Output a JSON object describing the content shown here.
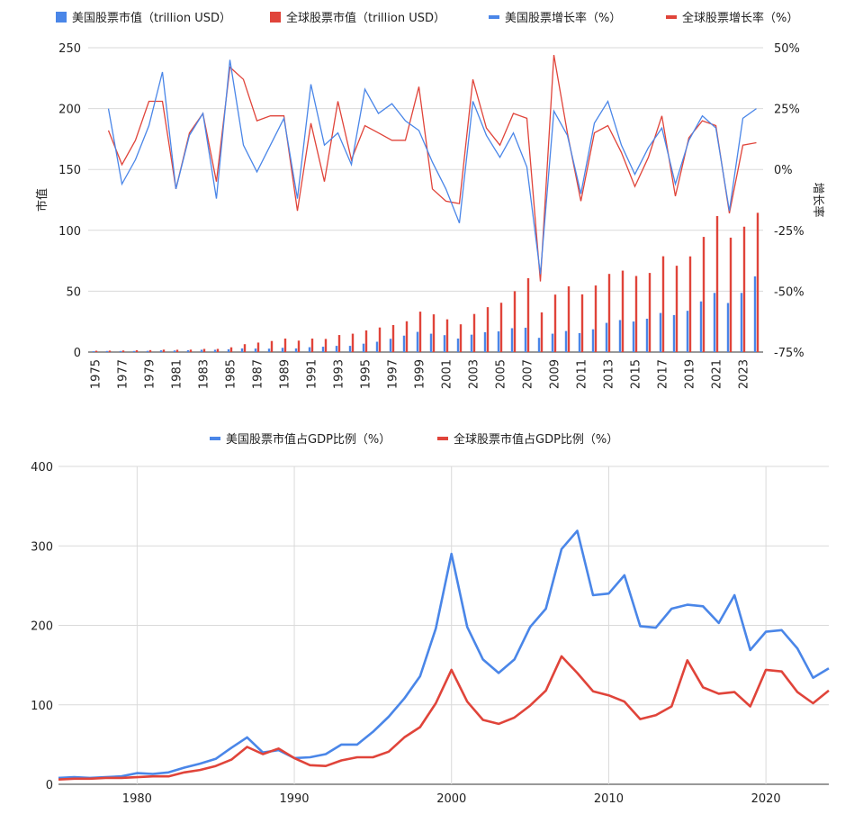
{
  "colors": {
    "us": "#4A86E8",
    "global": "#E0443A",
    "grid": "#DADADA",
    "axis": "#333333"
  },
  "chart_data": [
    {
      "type": "bar+line",
      "title": "",
      "legend": [
        "美国股票市值（trillion USD）",
        "全球股票市值（trillion USD）",
        "美国股票增长率（%）",
        "全球股票增长率（%）"
      ],
      "legend_position": "top",
      "ylabel_left": "市值",
      "ylabel_right": "增长率",
      "ylim_left": [
        0,
        250
      ],
      "ylim_right": [
        -75,
        50
      ],
      "yticks_left": [
        "0",
        "50",
        "100",
        "150",
        "200",
        "250"
      ],
      "yticks_right": [
        "-75%",
        "-50%",
        "-25%",
        "0%",
        "25%",
        "50%"
      ],
      "xticks": [
        "1975",
        "1977",
        "1979",
        "1981",
        "1983",
        "1985",
        "1987",
        "1989",
        "1991",
        "1993",
        "1995",
        "1997",
        "1999",
        "2001",
        "2003",
        "2005",
        "2007",
        "2009",
        "2011",
        "2013",
        "2015",
        "2017",
        "2019",
        "2021",
        "2023"
      ],
      "years": [
        1975,
        1976,
        1977,
        1978,
        1979,
        1980,
        1981,
        1982,
        1983,
        1984,
        1985,
        1986,
        1987,
        1988,
        1989,
        1990,
        1991,
        1992,
        1993,
        1994,
        1995,
        1996,
        1997,
        1998,
        1999,
        2000,
        2001,
        2002,
        2003,
        2004,
        2005,
        2006,
        2007,
        2008,
        2009,
        2010,
        2011,
        2012,
        2013,
        2014,
        2015,
        2016,
        2017,
        2018,
        2019,
        2020,
        2021,
        2022,
        2023,
        2024
      ],
      "series": [
        {
          "name": "美国股票市值（trillion USD）",
          "kind": "bar",
          "values": [
            0.7,
            0.9,
            0.9,
            0.9,
            1.0,
            1.4,
            1.3,
            1.5,
            1.9,
            1.9,
            2.3,
            3.0,
            2.9,
            2.8,
            3.5,
            3.0,
            4.0,
            4.4,
            5.1,
            5.1,
            6.9,
            8.5,
            10.9,
            13.5,
            16.6,
            15.1,
            13.9,
            11.1,
            14.3,
            16.3,
            17.0,
            19.6,
            20.0,
            11.7,
            15.1,
            17.3,
            15.6,
            18.7,
            24.0,
            26.3,
            25.1,
            27.4,
            32.1,
            30.4,
            33.9,
            41.6,
            48.6,
            40.3,
            48.6,
            62.2
          ]
        },
        {
          "name": "全球股票市值（trillion USD）",
          "kind": "bar",
          "values": [
            1.1,
            1.2,
            1.3,
            1.5,
            1.6,
            2.0,
            1.9,
            2.0,
            2.6,
            2.6,
            3.9,
            6.5,
            7.8,
            9.1,
            11.1,
            9.4,
            11.1,
            10.8,
            14.0,
            15.1,
            17.8,
            20.2,
            22.2,
            25.3,
            33.2,
            31.0,
            26.9,
            22.8,
            31.3,
            36.9,
            40.5,
            50.0,
            60.7,
            32.6,
            47.2,
            54.0,
            47.4,
            54.7,
            64.2,
            66.9,
            62.5,
            65.0,
            78.7,
            70.9,
            78.6,
            94.6,
            111.7,
            94.0,
            103.0,
            114.4
          ]
        },
        {
          "name": "美国股票增长率（%）",
          "kind": "line",
          "axis": "right",
          "values": [
            null,
            25,
            -6,
            4,
            18,
            40,
            -8,
            14,
            23,
            -12,
            45,
            10,
            -1,
            10,
            21,
            -12,
            35,
            10,
            15,
            2,
            33,
            23,
            27,
            20,
            16,
            3,
            -8,
            -22,
            28,
            14,
            5,
            15,
            1,
            -43,
            24,
            14,
            -10,
            19,
            28,
            10,
            -2,
            9,
            17,
            -6,
            12,
            22,
            17,
            -17,
            21,
            25
          ]
        },
        {
          "name": "全球股票增长率（%）",
          "kind": "line",
          "axis": "right",
          "values": [
            null,
            16,
            2,
            12,
            28,
            28,
            -8,
            15,
            23,
            -5,
            42,
            37,
            20,
            22,
            22,
            -17,
            19,
            -5,
            28,
            4,
            18,
            15,
            12,
            12,
            34,
            -8,
            -13,
            -14,
            37,
            17,
            10,
            23,
            21,
            -46,
            47,
            15,
            -13,
            15,
            18,
            7,
            -7,
            5,
            22,
            -11,
            13,
            20,
            18,
            -18,
            10,
            11
          ]
        }
      ]
    },
    {
      "type": "line",
      "title": "",
      "legend": [
        "美国股票市值占GDP比例（%）",
        "全球股票市值占GDP比例（%）"
      ],
      "legend_position": "top",
      "ylim": [
        0,
        400
      ],
      "yticks": [
        "0",
        "100",
        "200",
        "300",
        "400"
      ],
      "xlim": [
        1975,
        2024
      ],
      "xticks": [
        "1980",
        "1990",
        "2000",
        "2010",
        "2020"
      ],
      "years": [
        1975,
        1976,
        1977,
        1978,
        1979,
        1980,
        1981,
        1982,
        1983,
        1984,
        1985,
        1986,
        1987,
        1988,
        1989,
        1990,
        1991,
        1992,
        1993,
        1994,
        1995,
        1996,
        1997,
        1998,
        1999,
        2000,
        2001,
        2002,
        2003,
        2004,
        2005,
        2006,
        2007,
        2008,
        2009,
        2010,
        2011,
        2012,
        2013,
        2014,
        2015,
        2016,
        2017,
        2018,
        2019,
        2020,
        2021,
        2022,
        2023,
        2024
      ],
      "series": [
        {
          "name": "美国股票市值占GDP比例（%）",
          "values": [
            8,
            9,
            8,
            9,
            10,
            14,
            13,
            15,
            21,
            26,
            32,
            46,
            59,
            40,
            43,
            33,
            34,
            38,
            50,
            50,
            66,
            85,
            108,
            136,
            196,
            290,
            198,
            157,
            140,
            157,
            198,
            221,
            296,
            319,
            238,
            240,
            263,
            199,
            197,
            221,
            226,
            224,
            203,
            238,
            169,
            192,
            194,
            171,
            134,
            146
          ]
        },
        {
          "name": "全球股票市值占GDP比例（%）",
          "values": [
            6,
            7,
            7,
            8,
            8,
            9,
            10,
            10,
            15,
            18,
            23,
            31,
            47,
            38,
            45,
            33,
            24,
            23,
            30,
            34,
            34,
            41,
            59,
            72,
            102,
            144,
            104,
            81,
            76,
            84,
            99,
            118,
            161,
            140,
            117,
            112,
            104,
            82,
            87,
            98,
            156,
            122,
            114,
            116,
            98,
            144,
            142,
            116,
            102,
            118
          ]
        }
      ]
    }
  ]
}
